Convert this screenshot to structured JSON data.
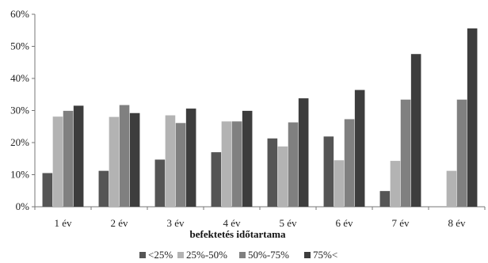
{
  "chart_data": {
    "type": "bar",
    "categories": [
      "1 év",
      "2 év",
      "3 év",
      "4 év",
      "5 év",
      "6 év",
      "7 év",
      "8 év"
    ],
    "series": [
      {
        "name": "<25%",
        "color": "#555555",
        "values": [
          10.5,
          11.2,
          14.7,
          17.0,
          21.3,
          21.9,
          4.9,
          0
        ]
      },
      {
        "name": "25%-50%",
        "color": "#b3b3b3",
        "values": [
          28.1,
          28.0,
          28.5,
          26.6,
          18.8,
          14.5,
          14.3,
          11.2
        ]
      },
      {
        "name": "50%-75%",
        "color": "#808080",
        "values": [
          29.9,
          31.7,
          26.1,
          26.6,
          26.3,
          27.3,
          33.4,
          33.4
        ]
      },
      {
        "name": "75%<",
        "color": "#3d3d3d",
        "values": [
          31.5,
          29.2,
          30.6,
          29.9,
          33.8,
          36.4,
          47.6,
          55.6
        ]
      }
    ],
    "ylim": [
      0,
      60
    ],
    "yticks": [
      "0%",
      "10%",
      "20%",
      "30%",
      "40%",
      "50%",
      "60%"
    ],
    "xlabel": "befektetés időtartama",
    "ylabel": "",
    "grid": false,
    "legend_position": "bottom"
  }
}
